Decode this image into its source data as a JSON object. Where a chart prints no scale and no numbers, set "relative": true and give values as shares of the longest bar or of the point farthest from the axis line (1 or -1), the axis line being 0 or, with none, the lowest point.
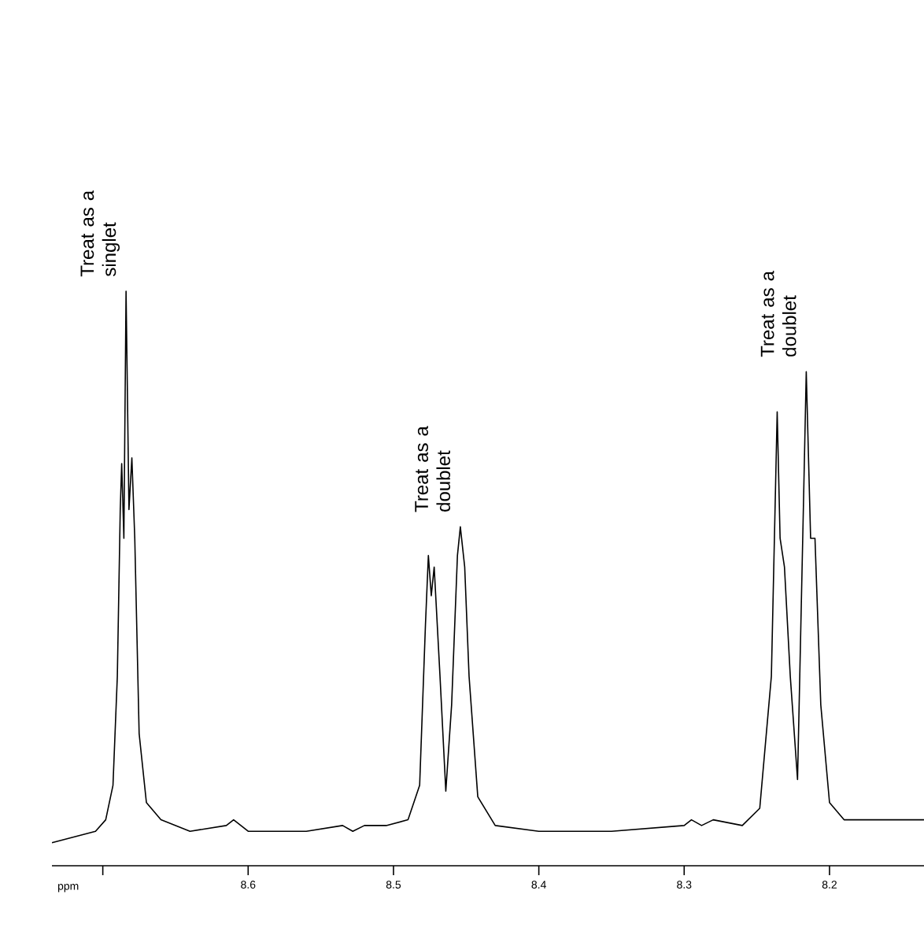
{
  "chart_data": {
    "type": "line",
    "relative": true,
    "xlabel": "ppm",
    "xlim": [
      8.735,
      8.135
    ],
    "xticks": [
      {
        "value": 8.7,
        "label": null
      },
      8.6,
      8.5,
      8.4,
      8.3,
      8.2
    ],
    "annotations": [
      {
        "text": "Treat as a singlet",
        "x": 8.684,
        "y": 1.0
      },
      {
        "text": "Treat as a doublet",
        "x": 8.454,
        "y": 0.59
      },
      {
        "text": "Treat as a doublet",
        "x": 8.216,
        "y": 0.86
      }
    ],
    "series": [
      {
        "color": "#000000",
        "x": [
          8.735,
          8.72,
          8.705,
          8.698,
          8.693,
          8.69,
          8.688,
          8.687,
          8.6855,
          8.684,
          8.682,
          8.68,
          8.678,
          8.675,
          8.67,
          8.66,
          8.64,
          8.615,
          8.61,
          8.6,
          8.56,
          8.535,
          8.528,
          8.52,
          8.505,
          8.49,
          8.482,
          8.478,
          8.476,
          8.474,
          8.472,
          8.468,
          8.464,
          8.46,
          8.456,
          8.454,
          8.451,
          8.448,
          8.442,
          8.43,
          8.4,
          8.35,
          8.3,
          8.295,
          8.288,
          8.28,
          8.26,
          8.248,
          8.24,
          8.236,
          8.234,
          8.231,
          8.227,
          8.222,
          8.218,
          8.216,
          8.213,
          8.21,
          8.206,
          8.2,
          8.19,
          8.18,
          8.17,
          8.15,
          8.135
        ],
        "values": [
          0.04,
          0.05,
          0.06,
          0.08,
          0.14,
          0.33,
          0.62,
          0.7,
          0.57,
          1.0,
          0.62,
          0.71,
          0.57,
          0.23,
          0.11,
          0.08,
          0.06,
          0.07,
          0.08,
          0.06,
          0.06,
          0.07,
          0.06,
          0.07,
          0.07,
          0.08,
          0.14,
          0.42,
          0.54,
          0.47,
          0.52,
          0.33,
          0.13,
          0.28,
          0.54,
          0.59,
          0.52,
          0.33,
          0.12,
          0.07,
          0.06,
          0.06,
          0.07,
          0.08,
          0.07,
          0.08,
          0.07,
          0.1,
          0.33,
          0.79,
          0.57,
          0.52,
          0.33,
          0.15,
          0.62,
          0.86,
          0.57,
          0.57,
          0.28,
          0.11,
          0.08,
          0.08,
          0.08,
          0.08,
          0.08
        ]
      }
    ]
  }
}
